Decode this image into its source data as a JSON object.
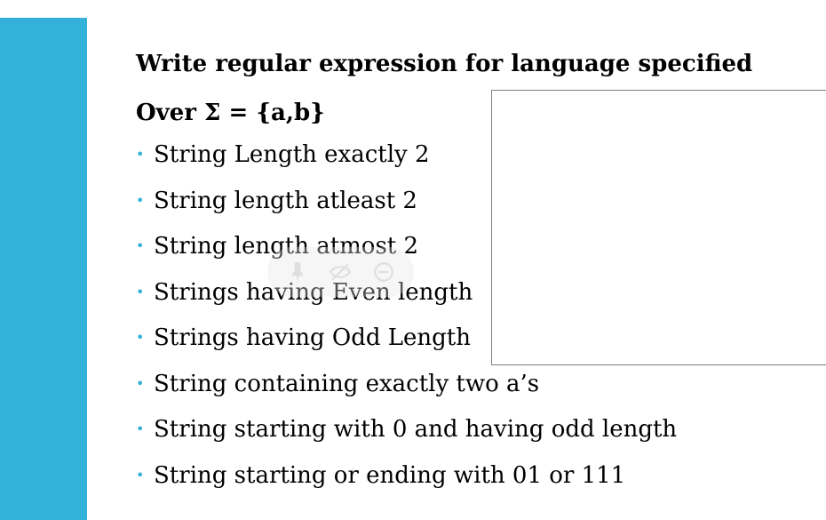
{
  "slide": {
    "title": "Write regular expression for language specified",
    "subtitle": "Over Σ = {a,b}",
    "bullet_symbol": "•",
    "bullets": [
      "String Length exactly 2",
      "String length atleast 2",
      "String length atmost 2",
      "Strings having Even length",
      "Strings having Odd Length",
      "String containing exactly two a’s",
      "String starting with 0 and having odd length",
      "String starting or ending with 01 or 111"
    ]
  },
  "overlay": {
    "icons": [
      "pen-icon",
      "hide-icon",
      "zoom-out-icon"
    ]
  },
  "colors": {
    "accent": "#34b1d8",
    "text": "#000000",
    "box_border": "#7f7f7f"
  }
}
